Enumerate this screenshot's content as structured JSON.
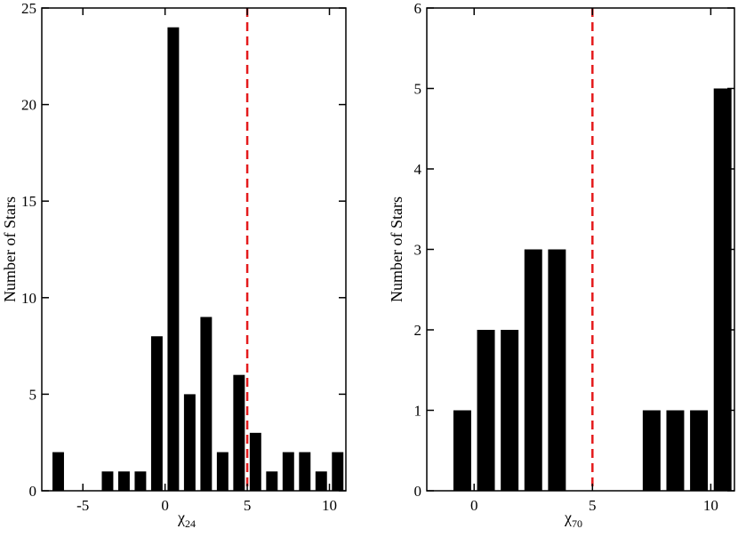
{
  "chart_data": [
    {
      "type": "bar",
      "xlabel_symbol": "χ",
      "xlabel_sub": "24",
      "ylabel": "Number of Stars",
      "xlim": [
        -7.5,
        11
      ],
      "ylim": [
        0,
        25
      ],
      "xticks": [
        -5,
        0,
        5,
        10
      ],
      "xtick_labels": [
        "-5",
        "0",
        "5",
        "10"
      ],
      "yticks": [
        0,
        5,
        10,
        15,
        20,
        25
      ],
      "ytick_labels": [
        "0",
        "5",
        "10",
        "15",
        "20",
        "25"
      ],
      "bar_width": 0.7,
      "x": [
        -6.5,
        -3.5,
        -2.5,
        -1.5,
        -0.5,
        0.5,
        1.5,
        2.5,
        3.5,
        4.5,
        5.5,
        6.5,
        7.5,
        8.5,
        9.5,
        10.5
      ],
      "values": [
        2,
        1,
        1,
        1,
        8,
        24,
        5,
        9,
        2,
        6,
        3,
        1,
        2,
        2,
        1,
        2
      ],
      "reference_line": {
        "x": 5,
        "color": "#e41a1c",
        "style": "dashed"
      },
      "bar_color": "#000000"
    },
    {
      "type": "bar",
      "xlabel_symbol": "χ",
      "xlabel_sub": "70",
      "ylabel": "Number of Stars",
      "xlim": [
        -2,
        11
      ],
      "ylim": [
        0,
        6
      ],
      "xticks": [
        0,
        5,
        10
      ],
      "xtick_labels": [
        "0",
        "5",
        "10"
      ],
      "yticks": [
        0,
        1,
        2,
        3,
        4,
        5,
        6
      ],
      "ytick_labels": [
        "0",
        "1",
        "2",
        "3",
        "4",
        "5",
        "6"
      ],
      "bar_width": 0.75,
      "x": [
        -0.5,
        0.5,
        1.5,
        2.5,
        3.5,
        7.5,
        8.5,
        9.5,
        10.5
      ],
      "values": [
        1,
        2,
        2,
        3,
        3,
        1,
        1,
        1,
        5
      ],
      "reference_line": {
        "x": 5,
        "color": "#e41a1c",
        "style": "dashed"
      },
      "bar_color": "#000000"
    }
  ]
}
